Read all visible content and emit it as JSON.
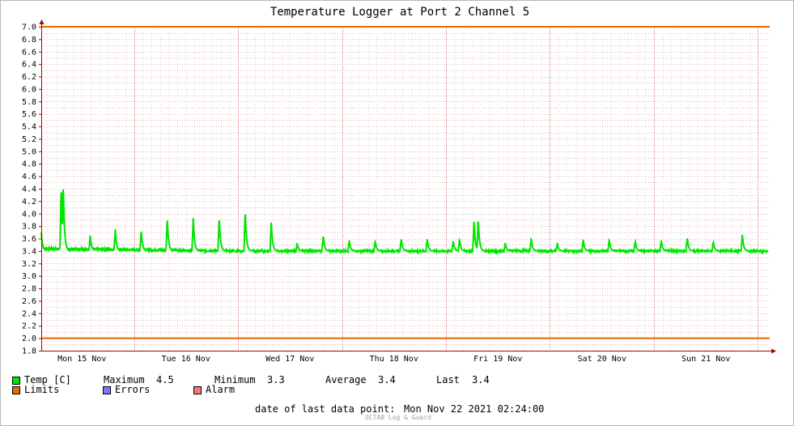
{
  "chart_data": {
    "type": "line",
    "title": "Temperature Logger at Port 2 Channel 5",
    "ylim": [
      1.8,
      7.0
    ],
    "y_ticks": [
      "7.0",
      "6.8",
      "6.6",
      "6.4",
      "6.2",
      "6.0",
      "5.8",
      "5.6",
      "5.4",
      "5.2",
      "5.0",
      "4.8",
      "4.6",
      "4.4",
      "4.2",
      "4.0",
      "3.8",
      "3.6",
      "3.4",
      "3.2",
      "3.0",
      "2.8",
      "2.6",
      "2.4",
      "2.2",
      "2.0",
      "1.8"
    ],
    "x_labels": [
      "Mon 15 Nov",
      "Tue 16 Nov",
      "Wed 17 Nov",
      "Thu 18 Nov",
      "Fri 19 Nov",
      "Sat 20 Nov",
      "Sun 21 Nov"
    ],
    "grid": true,
    "limits": [
      7.0,
      2.0
    ],
    "baseline": 3.4,
    "series": [
      {
        "name": "Temp [C]",
        "color": "#00e600",
        "peaks": [
          {
            "day": 0.05,
            "value": 3.75
          },
          {
            "day": 0.08,
            "value": 3.88
          },
          {
            "day": 0.1,
            "value": 4.03
          },
          {
            "day": 0.3,
            "value": 4.42
          },
          {
            "day": 0.32,
            "value": 4.48
          },
          {
            "day": 0.58,
            "value": 3.65
          },
          {
            "day": 0.82,
            "value": 3.75
          },
          {
            "day": 1.07,
            "value": 3.74
          },
          {
            "day": 1.32,
            "value": 3.93
          },
          {
            "day": 1.57,
            "value": 3.93
          },
          {
            "day": 1.82,
            "value": 3.94
          },
          {
            "day": 2.07,
            "value": 4.04
          },
          {
            "day": 2.32,
            "value": 3.86
          },
          {
            "day": 2.57,
            "value": 3.52
          },
          {
            "day": 2.82,
            "value": 3.65
          },
          {
            "day": 3.07,
            "value": 3.57
          },
          {
            "day": 3.32,
            "value": 3.56
          },
          {
            "day": 3.57,
            "value": 3.6
          },
          {
            "day": 3.82,
            "value": 3.59
          },
          {
            "day": 4.07,
            "value": 3.57
          },
          {
            "day": 4.13,
            "value": 3.59
          },
          {
            "day": 4.27,
            "value": 3.87
          },
          {
            "day": 4.31,
            "value": 3.92
          },
          {
            "day": 4.57,
            "value": 3.53
          },
          {
            "day": 4.82,
            "value": 3.6
          },
          {
            "day": 5.07,
            "value": 3.52
          },
          {
            "day": 5.32,
            "value": 3.58
          },
          {
            "day": 5.57,
            "value": 3.58
          },
          {
            "day": 5.82,
            "value": 3.56
          },
          {
            "day": 6.07,
            "value": 3.57
          },
          {
            "day": 6.32,
            "value": 3.62
          },
          {
            "day": 6.57,
            "value": 3.55
          },
          {
            "day": 6.85,
            "value": 3.66
          }
        ]
      },
      {
        "name": "Limits",
        "color": "#e66a00"
      }
    ],
    "stats": {
      "maximum_label": "Maximum",
      "maximum": "4.5",
      "minimum_label": "Minimum",
      "minimum": "3.3",
      "average_label": "Average",
      "average": "3.4",
      "last_label": "Last",
      "last": "3.4"
    }
  },
  "legend": {
    "temp": "Temp [C]",
    "limits": "Limits",
    "errors": "Errors",
    "alarm": "Alarm",
    "temp_color": "#00e600",
    "limits_color": "#e66a00",
    "errors_color": "#7777ff",
    "alarm_color": "#ff7777"
  },
  "footer": {
    "last_point_label": "date of last data point:",
    "last_point_value": "Mon Nov 22 2021 02:24:00",
    "watermark": "OCTA8 Log & Guard"
  }
}
